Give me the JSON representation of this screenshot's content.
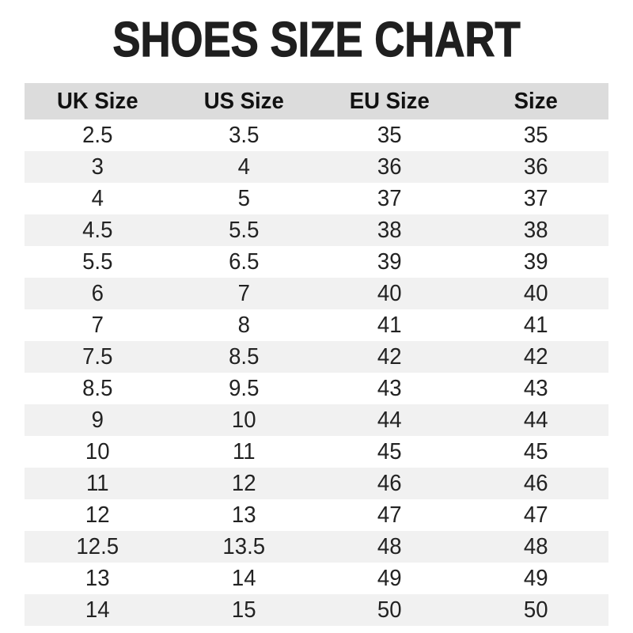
{
  "chart_data": {
    "type": "table",
    "title": "SHOES SIZE CHART",
    "columns": [
      "UK Size",
      "US Size",
      "EU Size",
      "Size"
    ],
    "rows": [
      [
        "2.5",
        "3.5",
        "35",
        "35"
      ],
      [
        "3",
        "4",
        "36",
        "36"
      ],
      [
        "4",
        "5",
        "37",
        "37"
      ],
      [
        "4.5",
        "5.5",
        "38",
        "38"
      ],
      [
        "5.5",
        "6.5",
        "39",
        "39"
      ],
      [
        "6",
        "7",
        "40",
        "40"
      ],
      [
        "7",
        "8",
        "41",
        "41"
      ],
      [
        "7.5",
        "8.5",
        "42",
        "42"
      ],
      [
        "8.5",
        "9.5",
        "43",
        "43"
      ],
      [
        "9",
        "10",
        "44",
        "44"
      ],
      [
        "10",
        "11",
        "45",
        "45"
      ],
      [
        "11",
        "12",
        "46",
        "46"
      ],
      [
        "12",
        "13",
        "47",
        "47"
      ],
      [
        "12.5",
        "13.5",
        "48",
        "48"
      ],
      [
        "13",
        "14",
        "49",
        "49"
      ],
      [
        "14",
        "15",
        "50",
        "50"
      ]
    ],
    "layout": {
      "stripe_style": "alternating rows, odd rows white, even rows light gray",
      "header_background": "#dcdcdc",
      "stripe_background": "#f1f1f1",
      "text_color": "#222222",
      "title_color": "#1f1f1f",
      "page_background": "#ffffff"
    }
  }
}
